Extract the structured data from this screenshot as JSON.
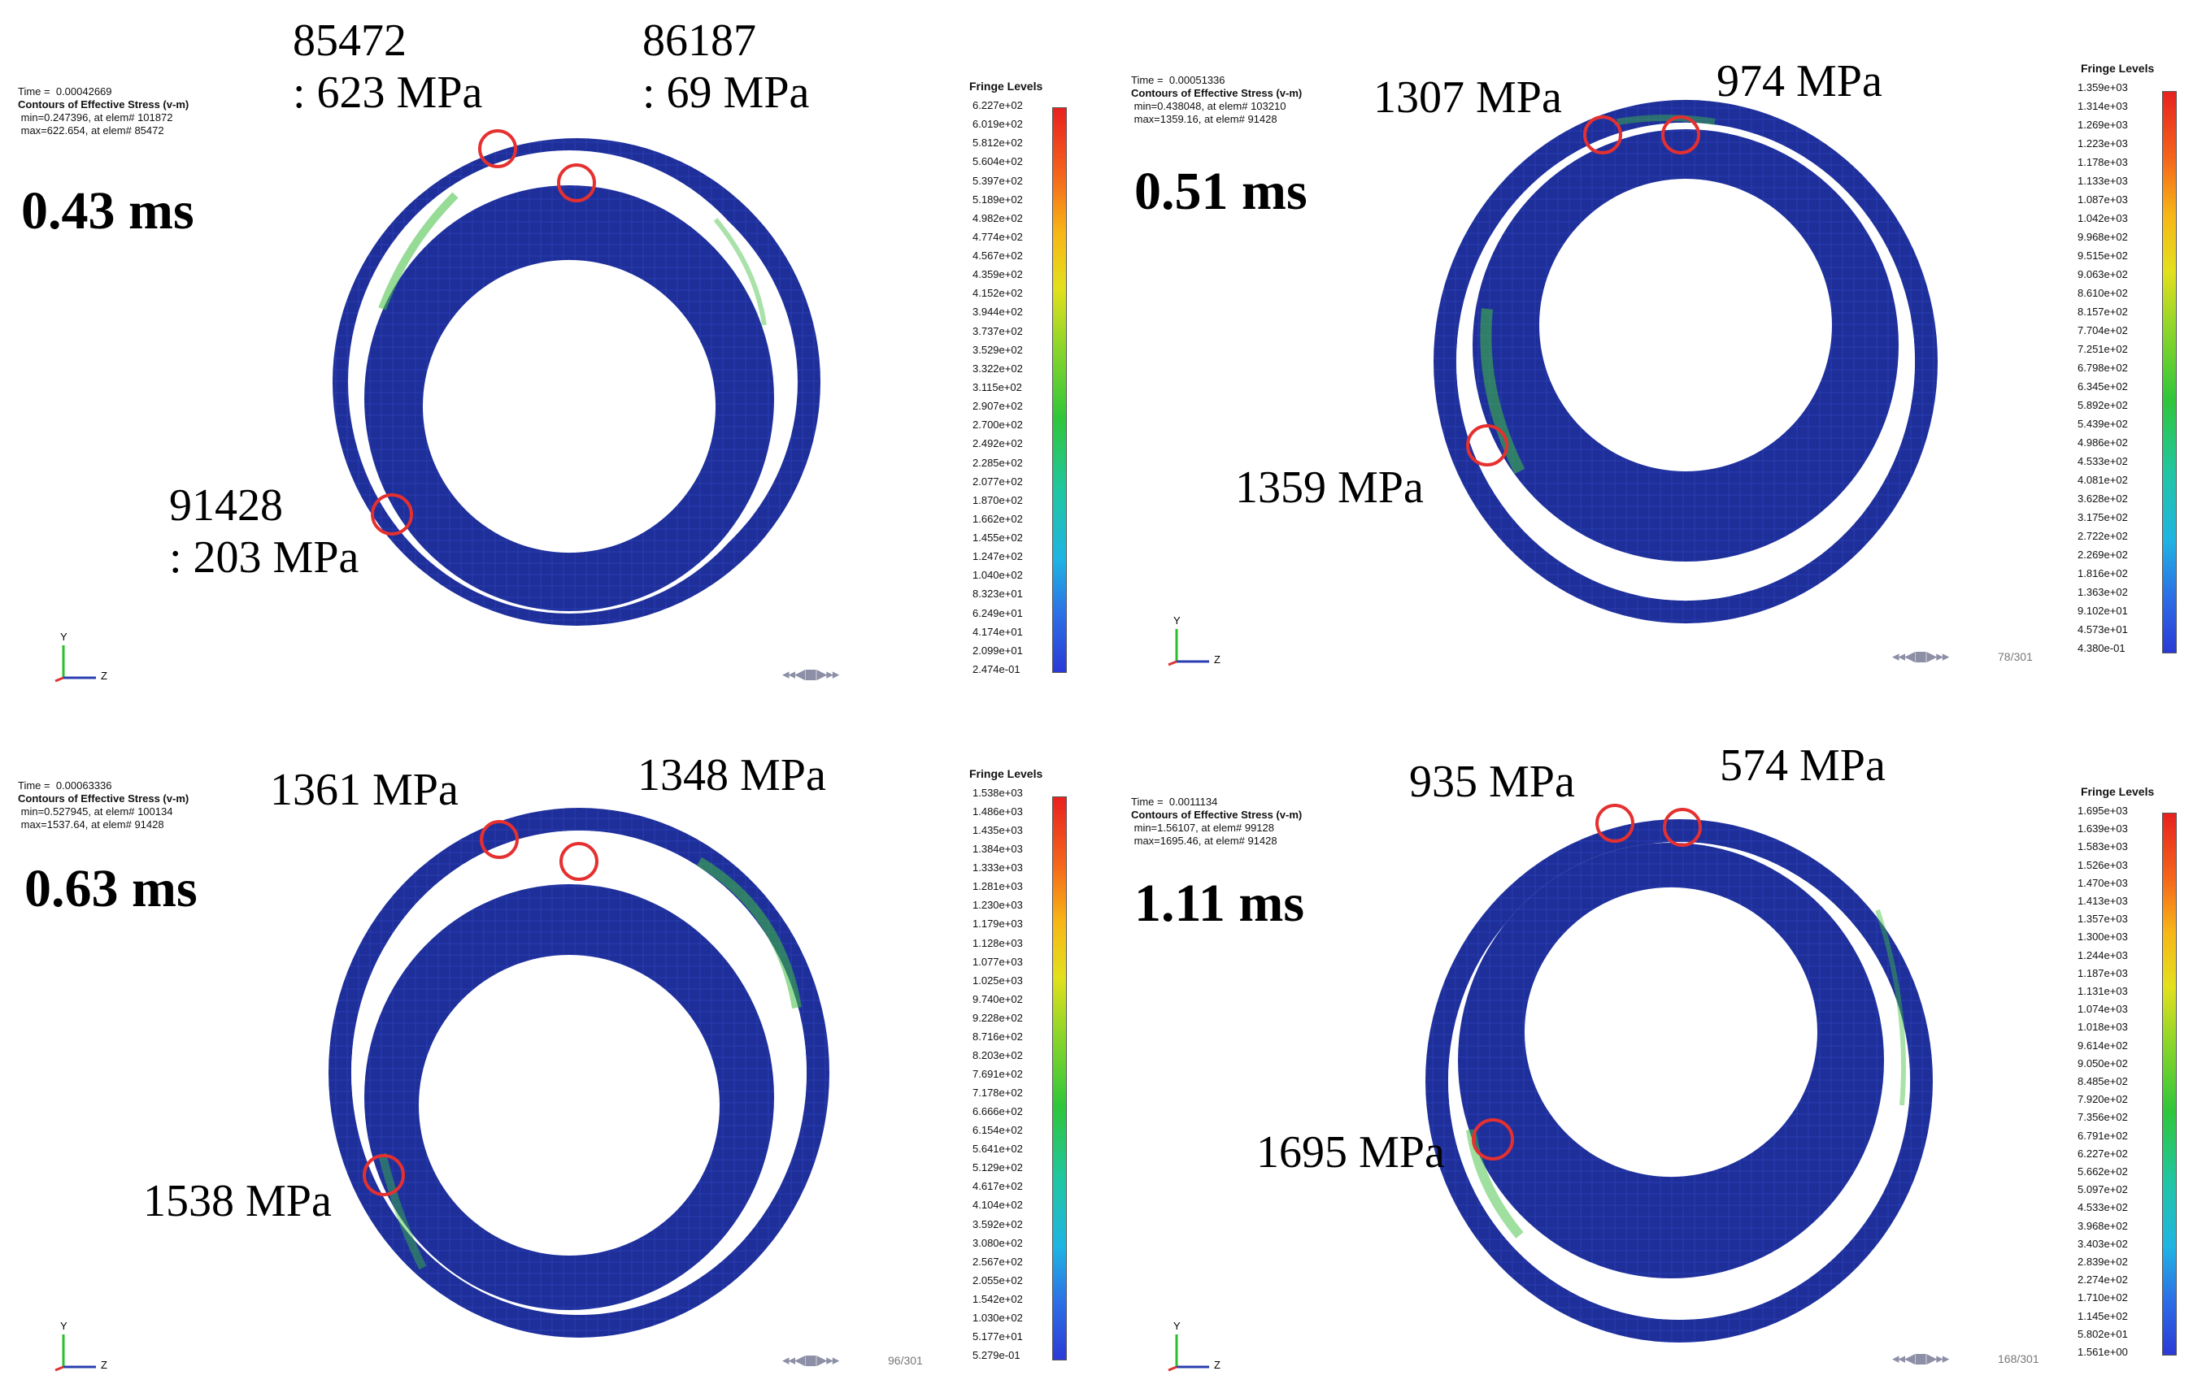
{
  "panels": [
    {
      "time_header": "Time =  0.00042669",
      "title": "Contours of Effective Stress (v-m)",
      "min_text": " min=0.247396, at elem# 101872",
      "max_text": " max=622.654, at elem# 85472",
      "time_label": "0.43 ms",
      "fringe_title": "Fringe Levels",
      "levels": [
        "6.227e+02",
        "6.019e+02",
        "5.812e+02",
        "5.604e+02",
        "5.397e+02",
        "5.189e+02",
        "4.982e+02",
        "4.774e+02",
        "4.567e+02",
        "4.359e+02",
        "4.152e+02",
        "3.944e+02",
        "3.737e+02",
        "3.529e+02",
        "3.322e+02",
        "3.115e+02",
        "2.907e+02",
        "2.700e+02",
        "2.492e+02",
        "2.285e+02",
        "2.077e+02",
        "1.870e+02",
        "1.662e+02",
        "1.455e+02",
        "1.247e+02",
        "1.040e+02",
        "8.323e+01",
        "6.249e+01",
        "4.174e+01",
        "2.099e+01",
        "2.474e-01"
      ],
      "frame": "",
      "annotations": [
        {
          "lines": [
            "85472",
            ": 623 MPa"
          ]
        },
        {
          "lines": [
            "86187",
            ": 69 MPa"
          ]
        },
        {
          "lines": [
            "91428",
            ": 203 MPa"
          ]
        }
      ]
    },
    {
      "time_header": "Time =  0.00051336",
      "title": "Contours of Effective Stress (v-m)",
      "min_text": " min=0.438048, at elem# 103210",
      "max_text": " max=1359.16, at elem# 91428",
      "time_label": "0.51 ms",
      "fringe_title": "Fringe Levels",
      "levels": [
        "1.359e+03",
        "1.314e+03",
        "1.269e+03",
        "1.223e+03",
        "1.178e+03",
        "1.133e+03",
        "1.087e+03",
        "1.042e+03",
        "9.968e+02",
        "9.515e+02",
        "9.063e+02",
        "8.610e+02",
        "8.157e+02",
        "7.704e+02",
        "7.251e+02",
        "6.798e+02",
        "6.345e+02",
        "5.892e+02",
        "5.439e+02",
        "4.986e+02",
        "4.533e+02",
        "4.081e+02",
        "3.628e+02",
        "3.175e+02",
        "2.722e+02",
        "2.269e+02",
        "1.816e+02",
        "1.363e+02",
        "9.102e+01",
        "4.573e+01",
        "4.380e-01"
      ],
      "frame": "78/301",
      "annotations": [
        {
          "lines": [
            "1307 MPa"
          ]
        },
        {
          "lines": [
            "974 MPa"
          ]
        },
        {
          "lines": [
            "1359 MPa"
          ]
        }
      ]
    },
    {
      "time_header": "Time =  0.00063336",
      "title": "Contours of Effective Stress (v-m)",
      "min_text": " min=0.527945, at elem# 100134",
      "max_text": " max=1537.64, at elem# 91428",
      "time_label": "0.63 ms",
      "fringe_title": "Fringe Levels",
      "levels": [
        "1.538e+03",
        "1.486e+03",
        "1.435e+03",
        "1.384e+03",
        "1.333e+03",
        "1.281e+03",
        "1.230e+03",
        "1.179e+03",
        "1.128e+03",
        "1.077e+03",
        "1.025e+03",
        "9.740e+02",
        "9.228e+02",
        "8.716e+02",
        "8.203e+02",
        "7.691e+02",
        "7.178e+02",
        "6.666e+02",
        "6.154e+02",
        "5.641e+02",
        "5.129e+02",
        "4.617e+02",
        "4.104e+02",
        "3.592e+02",
        "3.080e+02",
        "2.567e+02",
        "2.055e+02",
        "1.542e+02",
        "1.030e+02",
        "5.177e+01",
        "5.279e-01"
      ],
      "frame": "96/301",
      "annotations": [
        {
          "lines": [
            "1361 MPa"
          ]
        },
        {
          "lines": [
            "1348 MPa"
          ]
        },
        {
          "lines": [
            "1538 MPa"
          ]
        }
      ]
    },
    {
      "time_header": "Time =  0.0011134",
      "title": "Contours of Effective Stress (v-m)",
      "min_text": " min=1.56107, at elem# 99128",
      "max_text": " max=1695.46, at elem# 91428",
      "time_label": "1.11 ms",
      "fringe_title": "Fringe Levels",
      "levels": [
        "1.695e+03",
        "1.639e+03",
        "1.583e+03",
        "1.526e+03",
        "1.470e+03",
        "1.413e+03",
        "1.357e+03",
        "1.300e+03",
        "1.244e+03",
        "1.187e+03",
        "1.131e+03",
        "1.074e+03",
        "1.018e+03",
        "9.614e+02",
        "9.050e+02",
        "8.485e+02",
        "7.920e+02",
        "7.356e+02",
        "6.791e+02",
        "6.227e+02",
        "5.662e+02",
        "5.097e+02",
        "4.533e+02",
        "3.968e+02",
        "3.403e+02",
        "2.839e+02",
        "2.274e+02",
        "1.710e+02",
        "1.145e+02",
        "5.802e+01",
        "1.561e+00"
      ],
      "frame": "168/301",
      "annotations": [
        {
          "lines": [
            "935 MPa"
          ]
        },
        {
          "lines": [
            "574 MPa"
          ]
        },
        {
          "lines": [
            "1695 MPa"
          ]
        }
      ]
    }
  ],
  "axis_labels": {
    "y": "Y",
    "z": "Z"
  },
  "colors": {
    "mesh": "#1e2f9a",
    "mesh_dark": "#152175",
    "highlight": "#e53030",
    "stress": "#3fbf3f"
  }
}
